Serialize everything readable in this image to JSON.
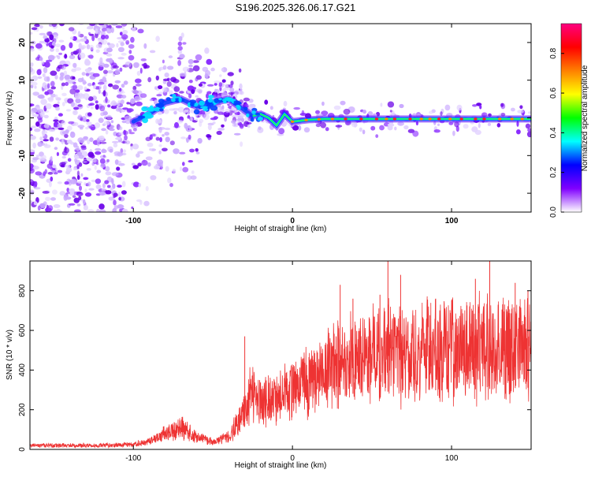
{
  "title": "S196.2025.326.06.17.G21",
  "chart_data": [
    {
      "type": "heatmap",
      "xlabel": "Height of straight line (km)",
      "ylabel": "Frequency (Hz)",
      "xlim": [
        -165,
        150
      ],
      "ylim": [
        -25,
        25
      ],
      "x_ticks": [
        -100,
        0,
        100
      ],
      "y_ticks": [
        -20,
        -10,
        0,
        10,
        20
      ],
      "colorbar": {
        "label": "Normalized spectral amplitude",
        "range": [
          0,
          0.95
        ],
        "ticks": [
          "0.0",
          "0.2",
          "0.4",
          "0.6",
          "0.8"
        ],
        "colors": [
          "#ffffff",
          "#8000ff",
          "#0000ff",
          "#00ffff",
          "#00ff00",
          "#ffff00",
          "#ff8000",
          "#ff0000",
          "#ff0080"
        ]
      },
      "ridge": {
        "x": [
          -100,
          -90,
          -80,
          -70,
          -60,
          -50,
          -40,
          -30,
          -25,
          -20,
          -15,
          -10,
          -5,
          0,
          10,
          20,
          50,
          100,
          150
        ],
        "y": [
          -1,
          1,
          4,
          5,
          3,
          4,
          5,
          2,
          0.5,
          1,
          0,
          -2,
          1,
          -1,
          -0.5,
          -0.3,
          -0.3,
          -0.3,
          -0.3
        ]
      }
    },
    {
      "type": "line",
      "xlabel": "Height of straight line (km)",
      "ylabel": "SNR (10 * v/v)",
      "xlim": [
        -165,
        150
      ],
      "ylim": [
        0,
        950
      ],
      "x_ticks": [
        -100,
        0,
        100
      ],
      "y_ticks": [
        0,
        200,
        400,
        600,
        800
      ],
      "color": "#ee3333",
      "trend": {
        "x": [
          -165,
          -120,
          -100,
          -90,
          -80,
          -70,
          -60,
          -50,
          -40,
          -30,
          -25,
          -20,
          -10,
          0,
          10,
          20,
          30,
          50,
          70,
          100,
          130,
          150
        ],
        "y": [
          20,
          20,
          25,
          40,
          80,
          110,
          60,
          40,
          60,
          200,
          300,
          250,
          260,
          300,
          350,
          400,
          460,
          480,
          490,
          500,
          510,
          520
        ]
      },
      "spikes": [
        {
          "x": -30,
          "y": 570
        },
        {
          "x": -15,
          "y": 330
        },
        {
          "x": 30,
          "y": 830
        },
        {
          "x": 38,
          "y": 760
        },
        {
          "x": 55,
          "y": 780
        },
        {
          "x": 60,
          "y": 950
        },
        {
          "x": 68,
          "y": 880
        },
        {
          "x": 90,
          "y": 760
        },
        {
          "x": 115,
          "y": 860
        },
        {
          "x": 124,
          "y": 950
        },
        {
          "x": 140,
          "y": 840
        },
        {
          "x": 148,
          "y": 800
        }
      ]
    }
  ]
}
